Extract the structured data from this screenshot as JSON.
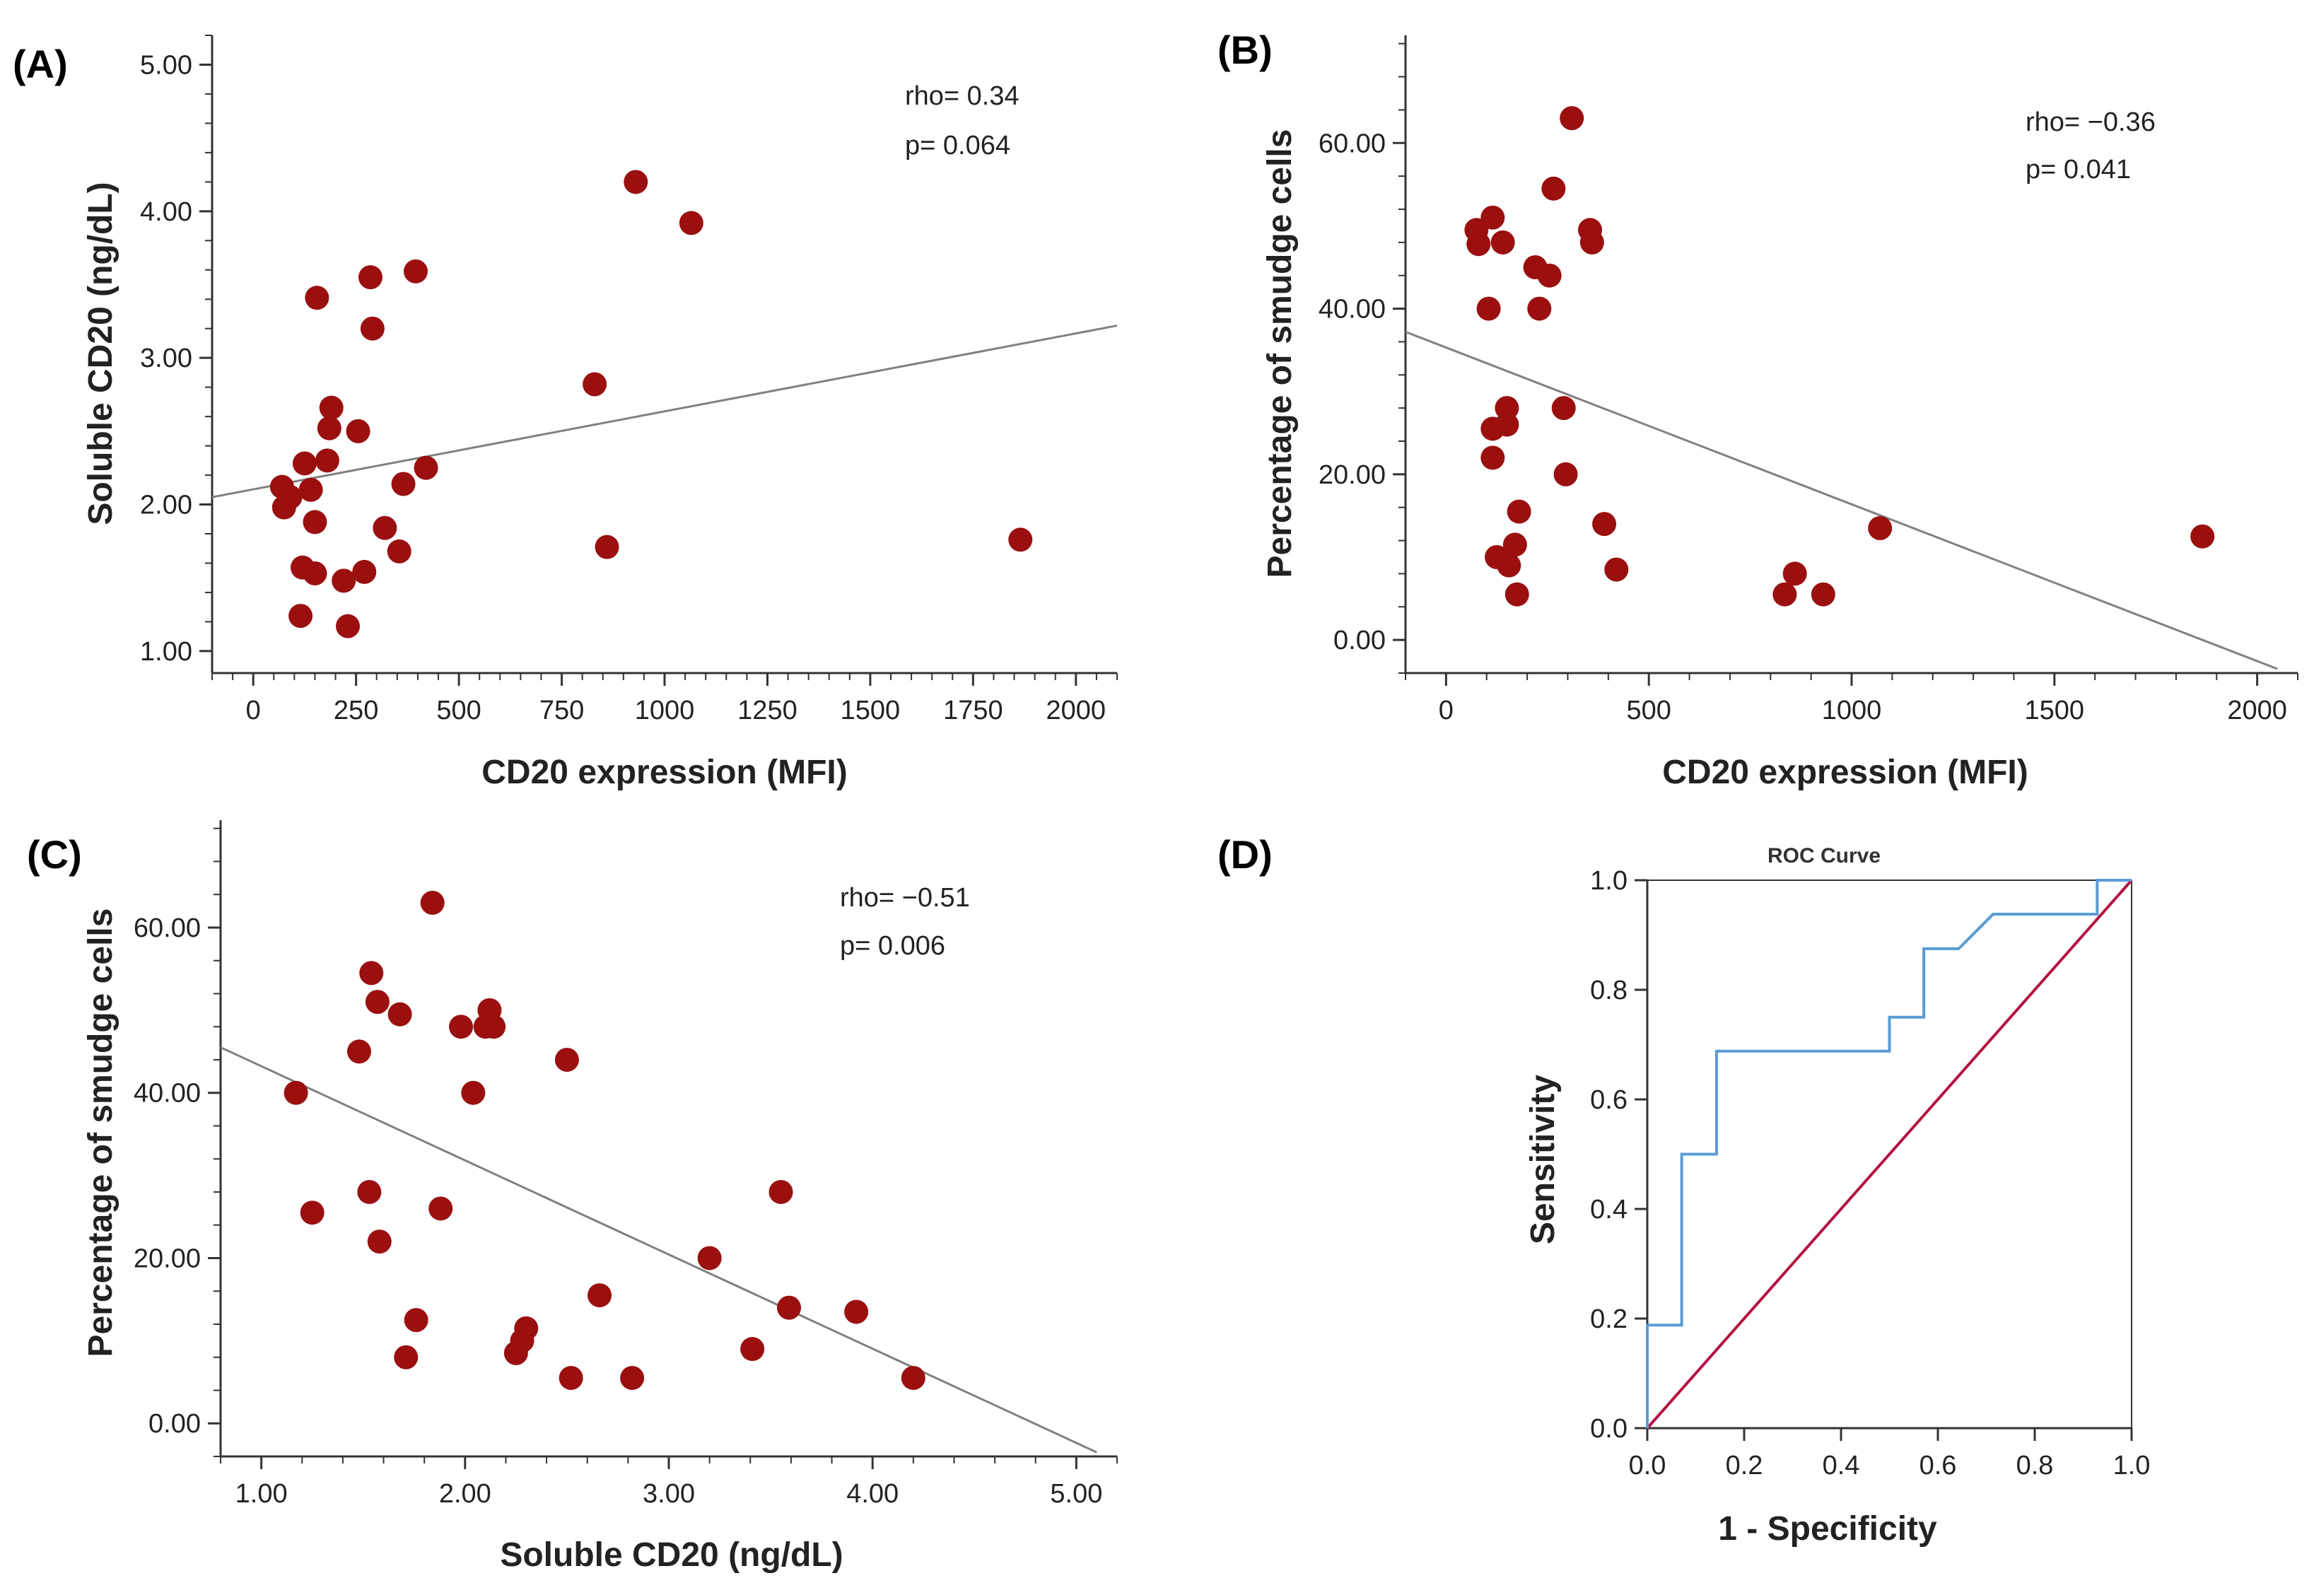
{
  "chart_data": [
    {
      "panel": "(A)",
      "type": "scatter",
      "xlabel": "CD20 expression  (MFI)",
      "ylabel": "Soluble CD20 (ng/dL)",
      "xticks": [
        "0",
        "250",
        "500",
        "750",
        "1000",
        "1250",
        "1500",
        "1750",
        "2000"
      ],
      "yticks": [
        "1.00",
        "2.00",
        "3.00",
        "4.00",
        "5.00"
      ],
      "xlim": [
        -100,
        2100
      ],
      "ylim": [
        0.85,
        5.2
      ],
      "annotations": [
        "rho= 0.34",
        "p= 0.064"
      ],
      "points": [
        [
          70,
          2.12
        ],
        [
          75,
          1.98
        ],
        [
          90,
          2.05
        ],
        [
          120,
          1.57
        ],
        [
          115,
          1.24
        ],
        [
          125,
          2.28
        ],
        [
          140,
          2.1
        ],
        [
          150,
          1.88
        ],
        [
          150,
          1.53
        ],
        [
          155,
          3.41
        ],
        [
          180,
          2.3
        ],
        [
          185,
          2.52
        ],
        [
          190,
          2.66
        ],
        [
          220,
          1.48
        ],
        [
          230,
          1.17
        ],
        [
          255,
          2.5
        ],
        [
          270,
          1.54
        ],
        [
          285,
          3.55
        ],
        [
          290,
          3.2
        ],
        [
          320,
          1.84
        ],
        [
          355,
          1.68
        ],
        [
          365,
          2.14
        ],
        [
          395,
          3.59
        ],
        [
          420,
          2.25
        ],
        [
          830,
          2.82
        ],
        [
          860,
          1.71
        ],
        [
          930,
          4.2
        ],
        [
          1065,
          3.92
        ],
        [
          1865,
          1.76
        ]
      ],
      "fit_line": [
        [
          -100,
          2.05
        ],
        [
          2100,
          3.22
        ]
      ]
    },
    {
      "panel": "(B)",
      "type": "scatter",
      "xlabel": "CD20 expression  (MFI)",
      "ylabel": "Percentage of smudge cells",
      "xticks": [
        "0",
        "500",
        "1000",
        "1500",
        "2000"
      ],
      "yticks": [
        "0.00",
        "20.00",
        "40.00",
        "60.00"
      ],
      "xlim": [
        -100,
        2100
      ],
      "ylim": [
        -4,
        73
      ],
      "annotations": [
        "rho= −0.36",
        "p= 0.041"
      ],
      "points": [
        [
          75,
          49.5
        ],
        [
          80,
          47.8
        ],
        [
          105,
          40
        ],
        [
          115,
          51
        ],
        [
          115,
          25.5
        ],
        [
          115,
          22
        ],
        [
          125,
          10
        ],
        [
          140,
          48
        ],
        [
          150,
          26
        ],
        [
          150,
          28
        ],
        [
          155,
          9
        ],
        [
          170,
          11.5
        ],
        [
          175,
          5.5
        ],
        [
          180,
          15.5
        ],
        [
          220,
          45
        ],
        [
          230,
          40
        ],
        [
          255,
          44
        ],
        [
          265,
          54.5
        ],
        [
          290,
          28
        ],
        [
          295,
          20
        ],
        [
          310,
          63
        ],
        [
          355,
          49.5
        ],
        [
          360,
          48
        ],
        [
          390,
          14
        ],
        [
          420,
          8.5
        ],
        [
          835,
          5.5
        ],
        [
          860,
          8
        ],
        [
          930,
          5.5
        ],
        [
          1070,
          13.5
        ],
        [
          1865,
          12.5
        ]
      ],
      "fit_line": [
        [
          -100,
          37.2
        ],
        [
          2050,
          -3.5
        ]
      ]
    },
    {
      "panel": "(C)",
      "type": "scatter",
      "xlabel": "Soluble CD20 (ng/dL)",
      "ylabel": "Percentage of smudge cells",
      "xticks": [
        "1.00",
        "2.00",
        "3.00",
        "4.00",
        "5.00"
      ],
      "yticks": [
        "0.00",
        "20.00",
        "40.00",
        "60.00"
      ],
      "xlim": [
        0.8,
        5.2
      ],
      "ylim": [
        -4,
        73
      ],
      "annotations": [
        "rho= −0.51",
        "p= 0.006"
      ],
      "points": [
        [
          1.17,
          40
        ],
        [
          1.25,
          25.5
        ],
        [
          1.48,
          45
        ],
        [
          1.53,
          28
        ],
        [
          1.54,
          54.5
        ],
        [
          1.57,
          51
        ],
        [
          1.58,
          22
        ],
        [
          1.68,
          49.5
        ],
        [
          1.71,
          8
        ],
        [
          1.76,
          12.5
        ],
        [
          1.84,
          63
        ],
        [
          1.88,
          26
        ],
        [
          1.98,
          48
        ],
        [
          2.04,
          40
        ],
        [
          2.1,
          48
        ],
        [
          2.12,
          50
        ],
        [
          2.14,
          48
        ],
        [
          2.25,
          8.5
        ],
        [
          2.28,
          10
        ],
        [
          2.3,
          11.5
        ],
        [
          2.5,
          44
        ],
        [
          2.52,
          5.5
        ],
        [
          2.66,
          15.5
        ],
        [
          2.82,
          5.5
        ],
        [
          3.2,
          20
        ],
        [
          3.41,
          9
        ],
        [
          3.55,
          28
        ],
        [
          3.59,
          14
        ],
        [
          3.92,
          13.5
        ],
        [
          4.2,
          5.5
        ]
      ],
      "fit_line": [
        [
          0.8,
          45.5
        ],
        [
          5.1,
          -3.5
        ]
      ]
    },
    {
      "panel": "(D)",
      "type": "line",
      "title": "ROC Curve",
      "xlabel": "1 - Specificity",
      "ylabel": "Sensitivity",
      "xticks": [
        "0.0",
        "0.2",
        "0.4",
        "0.6",
        "0.8",
        "1.0"
      ],
      "yticks": [
        "0.0",
        "0.2",
        "0.4",
        "0.6",
        "0.8",
        "1.0"
      ],
      "xlim": [
        0,
        1
      ],
      "ylim": [
        0,
        1
      ],
      "roc_curve": [
        [
          0,
          0
        ],
        [
          0,
          0.188
        ],
        [
          0.071,
          0.188
        ],
        [
          0.071,
          0.5
        ],
        [
          0.143,
          0.5
        ],
        [
          0.143,
          0.688
        ],
        [
          0.5,
          0.688
        ],
        [
          0.5,
          0.75
        ],
        [
          0.571,
          0.75
        ],
        [
          0.571,
          0.875
        ],
        [
          0.643,
          0.875
        ],
        [
          0.714,
          0.938
        ],
        [
          0.929,
          0.938
        ],
        [
          0.929,
          1.0
        ],
        [
          1.0,
          1.0
        ]
      ],
      "reference_line": [
        [
          0,
          0
        ],
        [
          1,
          1
        ]
      ]
    }
  ],
  "colors": {
    "point": "#9b0f0f",
    "fit_line": "#808080",
    "roc": "#5b9bd5",
    "reference": "#b5123f",
    "axis": "#333333"
  }
}
